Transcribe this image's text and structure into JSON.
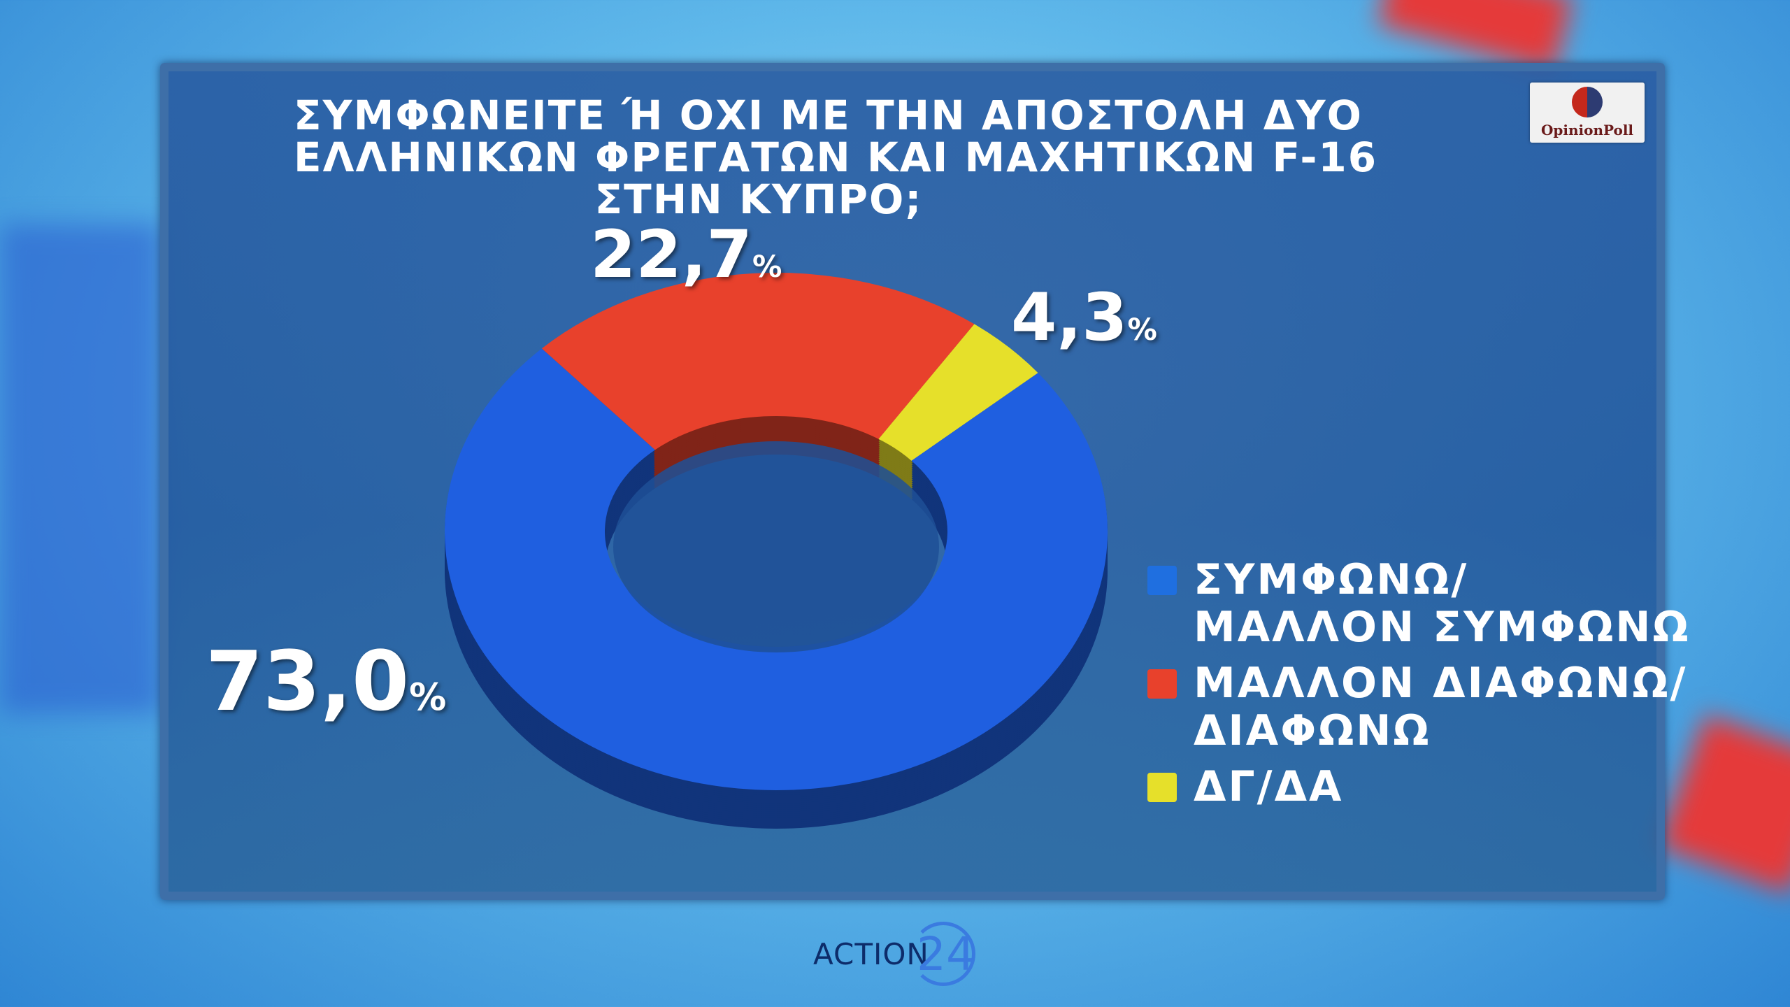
{
  "chart_data": {
    "type": "pie",
    "style": "3d-donut",
    "title": "ΣΥΜΦΩΝΕΙΤΕ Ή ΟΧΙ ΜΕ ΤΗΝ ΑΠΟΣΤΟΛΗ ΔΥΟ ΕΛΛΗΝΙΚΩΝ ΦΡΕΓΑΤΩΝ ΚΑΙ ΜΑΧΗΤΙΚΩΝ F-16 ΣΤΗΝ ΚΥΠΡΟ;",
    "title_lines": [
      "ΣΥΜΦΩΝΕΙΤΕ Ή ΟΧΙ ΜΕ ΤΗΝ ΑΠΟΣΤΟΛΗ ΔΥΟ",
      "ΕΛΛΗΝΙΚΩΝ ΦΡΕΓΑΤΩΝ ΚΑΙ ΜΑΧΗΤΙΚΩΝ F-16",
      "ΣΤΗΝ ΚΥΠΡΟ;"
    ],
    "legend_position": "right",
    "slices": [
      {
        "label": "ΜΑΛΛΟΝ ΔΙΑΦΩΝΩ/ ΔΙΑΦΩΝΩ",
        "label_lines": [
          "ΜΑΛΛΟΝ ΔΙΑΦΩΝΩ/",
          "ΔΙΑΦΩΝΩ"
        ],
        "value": 22.7,
        "display": "22,7",
        "color": "#e8412c"
      },
      {
        "label": "ΔΓ/ΔΑ",
        "label_lines": [
          "ΔΓ/ΔΑ"
        ],
        "value": 4.3,
        "display": "4,3",
        "color": "#e6e02a"
      },
      {
        "label": "ΣΥΜΦΩΝΩ/ ΜΑΛΛΟΝ ΣΥΜΦΩΝΩ",
        "label_lines": [
          "ΣΥΜΦΩΝΩ/",
          "ΜΑΛΛΟΝ ΣΥΜΦΩΝΩ"
        ],
        "value": 73.0,
        "display": "73,0",
        "color": "#1f5fe0"
      }
    ],
    "unit": "%"
  },
  "legend_order": [
    2,
    0,
    1
  ],
  "logo": {
    "text": "OpinionPoll"
  },
  "channel": {
    "word": "ACTION",
    "number": "24"
  }
}
